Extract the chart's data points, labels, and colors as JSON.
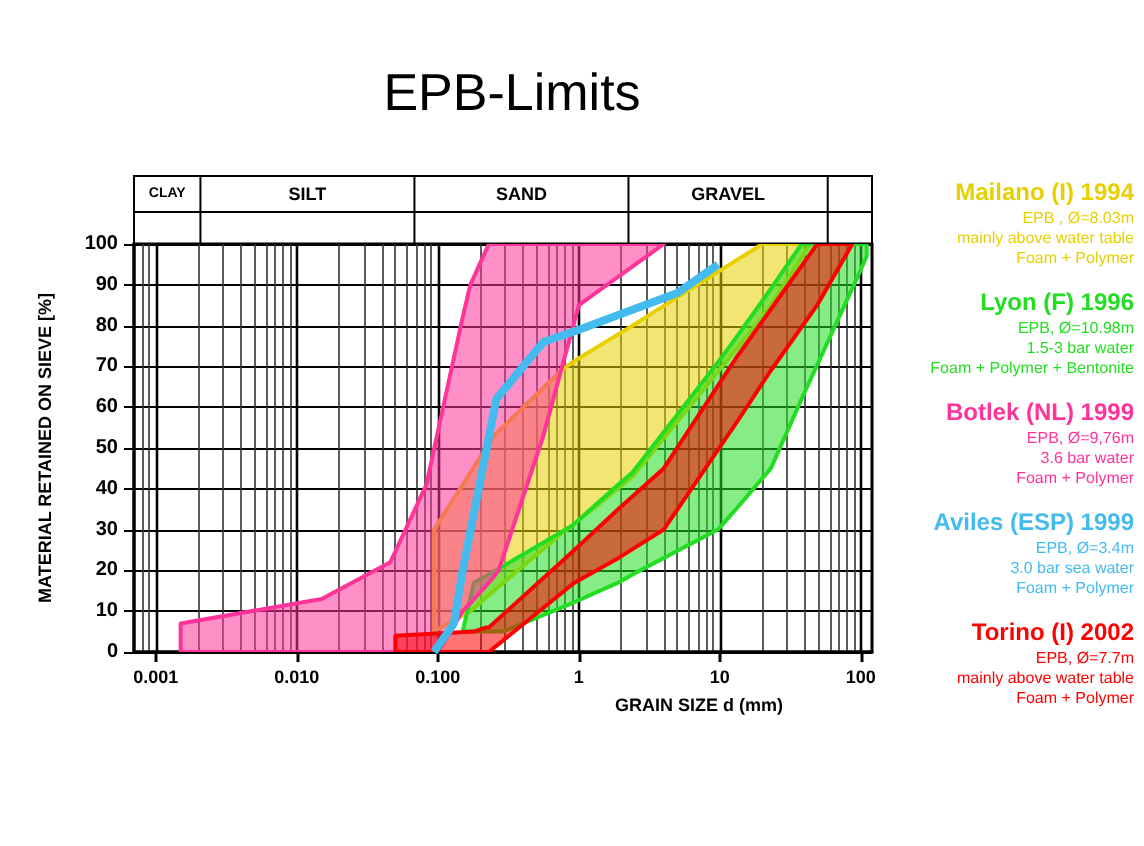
{
  "chart_data": {
    "type": "line",
    "title": "EPB-Limits",
    "xlabel": "GRAIN SIZE d (mm)",
    "ylabel": "MATERIAL RETAINED ON SIEVE [%]",
    "log": "x",
    "grid": true,
    "legend": "right",
    "marker": "none",
    "line_style": "solid",
    "xlim": [
      0.0007,
      120
    ],
    "xticks": [
      {
        "value": 0.001,
        "label": "0.001"
      },
      {
        "value": 0.01,
        "label": "0.010"
      },
      {
        "value": 0.1,
        "label": "0.100"
      },
      1,
      10,
      100
    ],
    "ylim": [
      0,
      100
    ],
    "yticks": [
      0,
      10,
      20,
      30,
      40,
      50,
      60,
      70,
      80,
      90,
      100
    ],
    "series": [
      {
        "name": "Mailano (I) 1994",
        "type": "area",
        "color": "#e8d000",
        "x": [
          0.094,
          0.17,
          0.25,
          0.75,
          0.9,
          2.4,
          20,
          23,
          44
        ],
        "upper": [
          30,
          44,
          53,
          69,
          71,
          80,
          100,
          100,
          100
        ],
        "lower": [
          5,
          10,
          15,
          29,
          31,
          43,
          82,
          85,
          100
        ],
        "values": [
          null,
          null,
          null,
          null,
          null,
          null,
          null,
          null,
          null
        ]
      },
      {
        "name": "Lyon (F) 1996",
        "type": "area",
        "color": "#22dd22",
        "x": [
          0.15,
          0.18,
          0.29,
          0.9,
          1.9,
          2.4,
          9.7,
          13,
          23,
          38,
          95,
          110
        ],
        "upper": [
          5,
          17,
          21,
          31,
          41,
          44,
          71,
          77,
          89,
          100,
          100,
          100
        ],
        "lower": [
          5,
          5,
          5,
          12,
          17,
          19,
          30,
          35,
          45,
          62,
          92,
          97
        ],
        "values": [
          null,
          null,
          null,
          null,
          null,
          null,
          null,
          null,
          null,
          null,
          null,
          null
        ]
      },
      {
        "name": "Botlek (NL) 1999",
        "type": "area",
        "color": "#ff3399",
        "x": [
          0.0015,
          0.015,
          0.046,
          0.083,
          0.1,
          0.15,
          0.17,
          0.23,
          0.27,
          0.56,
          1,
          4
        ],
        "upper": [
          7,
          13,
          22,
          41,
          54,
          82,
          90,
          100,
          100,
          100,
          100,
          100
        ],
        "lower": [
          0,
          0,
          0,
          0,
          0,
          10,
          12,
          17,
          20,
          53,
          85,
          100
        ],
        "values": [
          null,
          null,
          null,
          null,
          null,
          null,
          null,
          null,
          null,
          null,
          null,
          null
        ]
      },
      {
        "name": "Aviles (ESP) 1999",
        "color": "#44bbee",
        "x": [
          0.094,
          0.13,
          0.15,
          0.26,
          0.56,
          1,
          5,
          9.7
        ],
        "values": [
          0,
          7,
          20,
          62,
          76,
          79,
          88,
          95
        ]
      },
      {
        "name": "Torino (I) 2002",
        "type": "area",
        "color": "#ff0000",
        "x": [
          0.05,
          0.18,
          0.22,
          0.23,
          0.93,
          1.9,
          4,
          13,
          23,
          49,
          87
        ],
        "upper": [
          4,
          5,
          6,
          6,
          25,
          35,
          45,
          72,
          84,
          100,
          100
        ],
        "lower": [
          0,
          0,
          0,
          0,
          17,
          23,
          30,
          56,
          69,
          85,
          100
        ],
        "values": [
          null,
          null,
          null,
          null,
          null,
          null,
          null,
          null,
          null,
          null,
          null
        ]
      }
    ],
    "annotations": [
      "CLAY",
      "SILT",
      "SAND",
      "GRAVEL",
      "EPB , Ø=8.03m",
      "mainly above water table",
      "Foam + Polymer",
      "EPB, Ø=10.98m",
      "1.5-3 bar water",
      "Foam + Polymer + Bentonite",
      "EPB, Ø=9,76m",
      "3.6 bar water",
      "Foam + Polymer",
      "EPB, Ø=3.4m",
      "3.0 bar sea water",
      "Foam + Polymer",
      "EPB, Ø=7.7m",
      "mainly above water table",
      "Foam + Polymer"
    ]
  }
}
